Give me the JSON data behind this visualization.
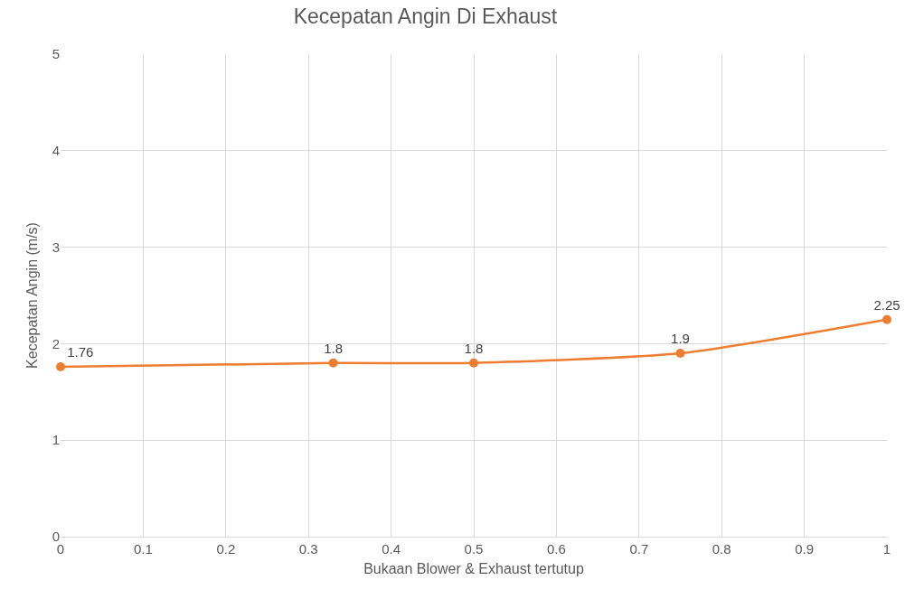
{
  "chart_data": {
    "type": "line",
    "title": "Kecepatan Angin Di Exhaust",
    "xlabel": "Bukaan Blower & Exhaust tertutup",
    "ylabel": "Kecepatan Angin (m/s)",
    "x": [
      0,
      0.33,
      0.5,
      0.75,
      1
    ],
    "series": [
      {
        "color": "#ed7d31",
        "values": [
          1.76,
          1.8,
          1.8,
          1.9,
          2.25
        ]
      }
    ],
    "xlim": [
      0,
      1
    ],
    "xticks": [
      0,
      0.1,
      0.2,
      0.3,
      0.4,
      0.5,
      0.6,
      0.7,
      0.8,
      0.9,
      1
    ],
    "ylim": [
      0,
      5
    ],
    "yticks": [
      0,
      1,
      2,
      3,
      4,
      5
    ],
    "grid": true,
    "marker": "circle",
    "line_style": "solid",
    "data_labels": true
  }
}
